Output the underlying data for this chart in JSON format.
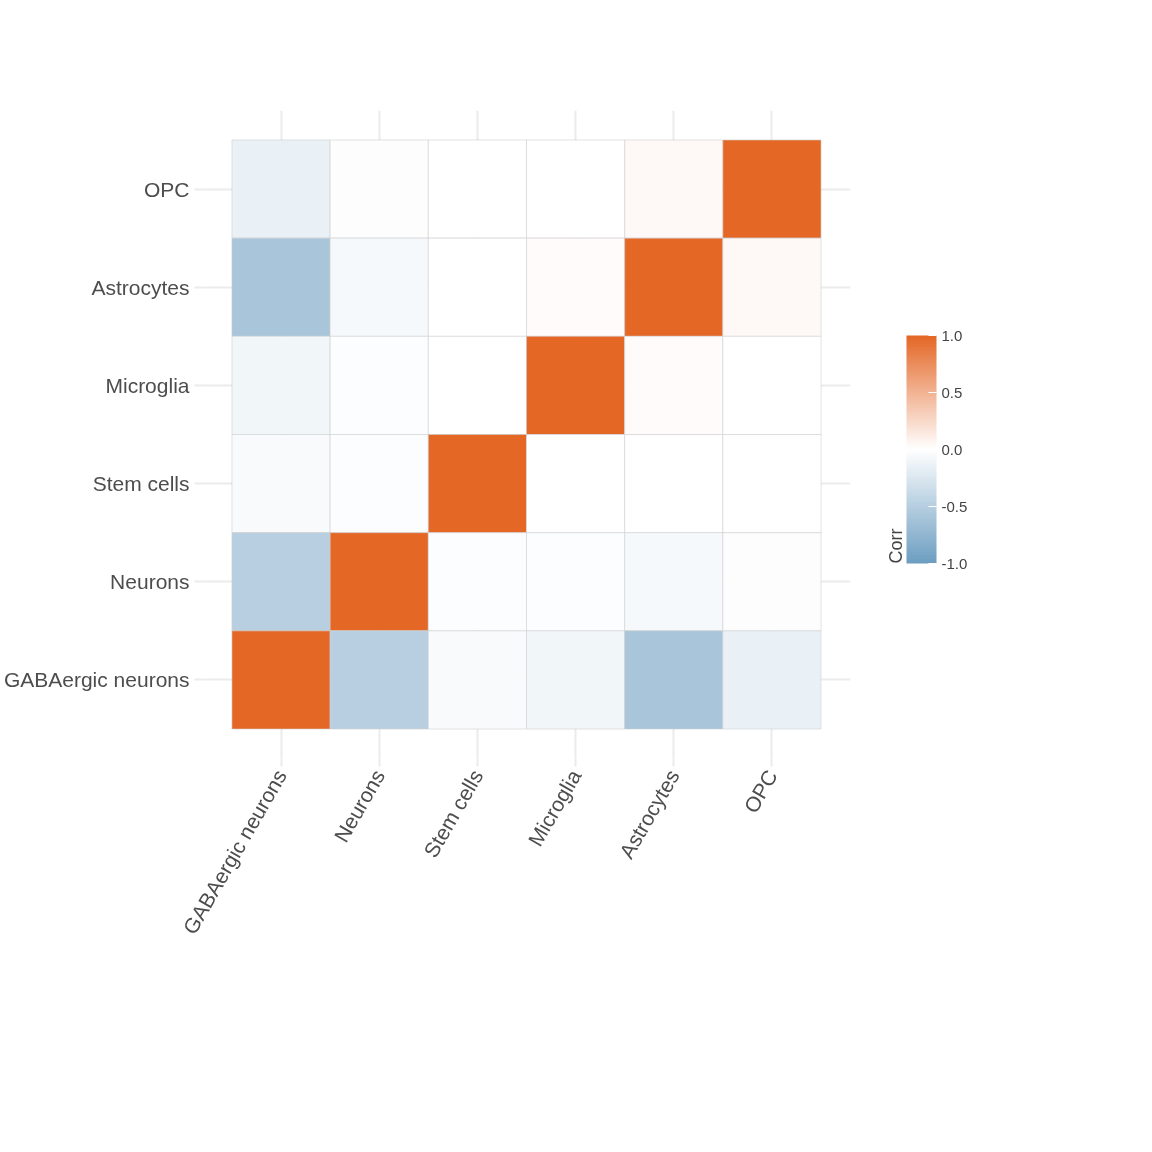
{
  "chart_data": {
    "type": "heatmap",
    "clabel": "Corr",
    "grid": true,
    "categories": [
      "GABAergic neurons",
      "Neurons",
      "Stem cells",
      "Microglia",
      "Astrocytes",
      "OPC"
    ],
    "y_categories": [
      "OPC",
      "Astrocytes",
      "Microglia",
      "Stem cells",
      "Neurons",
      "GABAergic neurons"
    ],
    "cells": [
      [
        -0.15,
        -0.02,
        0,
        0,
        0.04,
        1
      ],
      [
        -0.6,
        -0.07,
        0,
        0.03,
        1,
        0.04
      ],
      [
        -0.1,
        -0.03,
        0,
        1,
        0.03,
        0
      ],
      [
        -0.05,
        -0.03,
        1,
        0,
        0,
        0
      ],
      [
        -0.5,
        1,
        -0.03,
        -0.03,
        -0.07,
        -0.02
      ],
      [
        1,
        -0.5,
        -0.05,
        -0.1,
        -0.6,
        -0.15
      ]
    ],
    "colors": [
      "#6d9ec1",
      "#ffffff",
      "#e46726"
    ],
    "clim": [
      -1,
      1
    ],
    "cticks": [
      {
        "value": -1,
        "label": "-1.0"
      },
      {
        "value": -0.5,
        "label": "-0.5"
      },
      {
        "value": 0,
        "label": "0.0"
      },
      {
        "value": 0.5,
        "label": "0.5"
      },
      {
        "value": 1,
        "label": "1.0"
      }
    ]
  }
}
